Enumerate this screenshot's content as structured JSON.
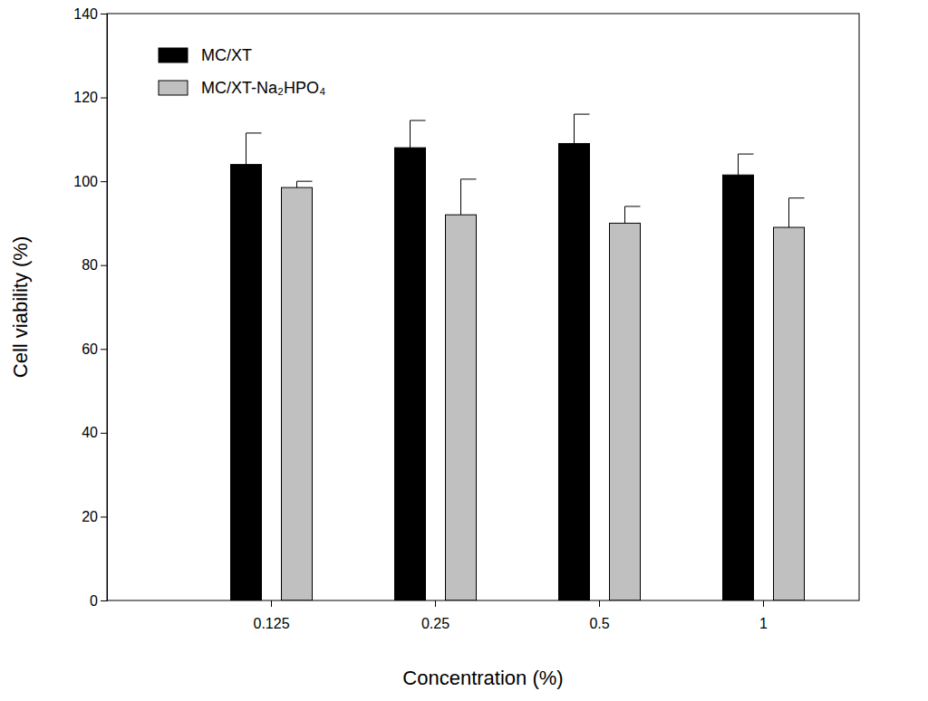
{
  "chart_data": {
    "type": "bar",
    "x_label": "Concentration (%)",
    "y_label": "Cell viability (%)",
    "categories": [
      "0.125",
      "0.25",
      "0.5",
      "1"
    ],
    "series": [
      {
        "name": "MC/XT",
        "color": "#000000",
        "values": [
          104,
          108,
          109,
          101.5
        ],
        "errors": [
          7.5,
          6.5,
          7,
          5
        ]
      },
      {
        "name": "MC/XT-Na₂HPO₄",
        "color": "#c0c0c0",
        "values": [
          98.5,
          92,
          90,
          89
        ],
        "errors": [
          1.5,
          8.5,
          4,
          7
        ]
      }
    ],
    "ylim": [
      0,
      140
    ],
    "yticks": [
      0,
      20,
      40,
      60,
      80,
      100,
      120,
      140
    ],
    "legend": "top-left",
    "grid": false
  }
}
